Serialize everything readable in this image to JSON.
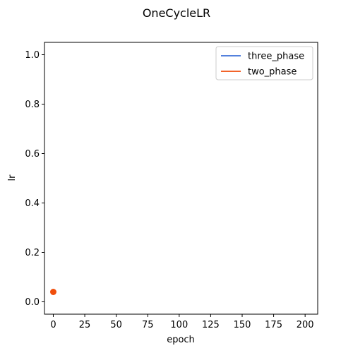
{
  "chart_data": {
    "type": "line",
    "title": "OneCycleLR",
    "xlabel": "epoch",
    "ylabel": "lr",
    "xlim": [
      -7,
      210
    ],
    "ylim": [
      -0.05,
      1.05
    ],
    "xticks": [
      0,
      25,
      50,
      75,
      100,
      125,
      150,
      175,
      200
    ],
    "yticks": [
      0.0,
      0.2,
      0.4,
      0.6,
      0.8,
      1.0
    ],
    "xtick_labels": [
      "0",
      "25",
      "50",
      "75",
      "100",
      "125",
      "150",
      "175",
      "200"
    ],
    "ytick_labels": [
      "0.0",
      "0.2",
      "0.4",
      "0.6",
      "0.8",
      "1.0"
    ],
    "grid": false,
    "legend_position": "top-right",
    "series": [
      {
        "name": "three_phase",
        "color": "#3b6fd8",
        "x": [
          0
        ],
        "y": [
          0.04
        ]
      },
      {
        "name": "two_phase",
        "color": "#f04e0c",
        "x": [
          0
        ],
        "y": [
          0.04
        ]
      }
    ],
    "marker": {
      "x": 0,
      "y": 0.04,
      "color": "#f04e0c"
    }
  }
}
